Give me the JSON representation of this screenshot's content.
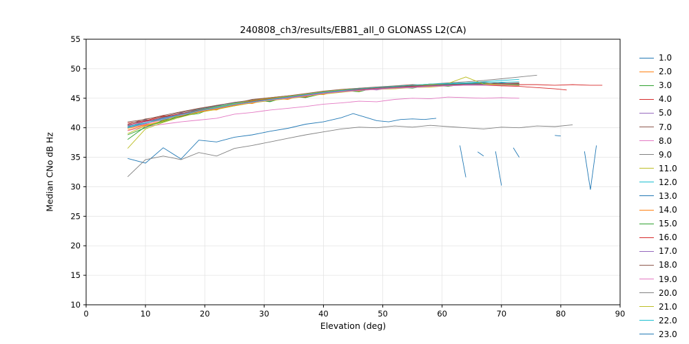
{
  "chart_data": {
    "type": "line",
    "title": "240808_ch3/results/EB81_all_0 GLONASS L2(CA)",
    "xlabel": "Elevation (deg)",
    "ylabel": "Median CNo dB Hz",
    "xlim": [
      0,
      90
    ],
    "ylim": [
      10,
      55
    ],
    "xticks": [
      0,
      10,
      20,
      30,
      40,
      50,
      60,
      70,
      80,
      90
    ],
    "yticks": [
      10,
      15,
      20,
      25,
      30,
      35,
      40,
      45,
      50,
      55
    ],
    "grid": true,
    "legend_position": "right-outside",
    "x_default": [
      7,
      10,
      13,
      16,
      19,
      22,
      25,
      28,
      31,
      34,
      37,
      40,
      43,
      46,
      49,
      52,
      55,
      58,
      61,
      64,
      67,
      70,
      73
    ],
    "series": [
      {
        "name": "1.0",
        "color": "#1f77b4",
        "y": [
          40.4,
          41.3,
          41.2,
          42.5,
          42.6,
          43.8,
          43.9,
          44.6,
          44.5,
          45.4,
          45.3,
          46.2,
          46.0,
          46.7,
          46.5,
          47.0,
          46.9,
          47.3,
          47.1,
          47.5,
          47.3,
          47.6,
          47.4
        ]
      },
      {
        "name": "2.0",
        "color": "#ff7f0e",
        "y": [
          39.9,
          40.5,
          41.6,
          41.9,
          43.1,
          43.0,
          44.2,
          44.1,
          45.0,
          44.8,
          45.7,
          45.6,
          46.4,
          46.2,
          46.9,
          46.6,
          47.2,
          46.9,
          47.4,
          47.2,
          47.6,
          47.2,
          47.5
        ]
      },
      {
        "name": "3.0",
        "color": "#2ca02c",
        "y": [
          38.0,
          40.2,
          41.0,
          42.0,
          42.4,
          43.6,
          43.7,
          44.7,
          44.4,
          45.3,
          45.1,
          45.8,
          46.3,
          46.1,
          46.8,
          46.9,
          46.7,
          47.2,
          47.0,
          47.4,
          47.5,
          47.1,
          47.3
        ]
      },
      {
        "name": "4.0",
        "color": "#d62728",
        "x": [
          7,
          10,
          13,
          16,
          19,
          22,
          25,
          28,
          31,
          34,
          37,
          40,
          43,
          46,
          49,
          52,
          55,
          58,
          61,
          64,
          67,
          70,
          73,
          76,
          79,
          82,
          85,
          87
        ],
        "y": [
          40.8,
          41.2,
          42.0,
          42.1,
          43.3,
          43.5,
          44.3,
          44.6,
          45.0,
          45.3,
          45.2,
          46.1,
          46.4,
          46.3,
          46.8,
          47.0,
          47.2,
          47.4,
          47.3,
          47.6,
          47.4,
          47.5,
          47.3,
          47.3,
          47.2,
          47.3,
          47.2,
          47.2
        ]
      },
      {
        "name": "5.0",
        "color": "#9467bd",
        "y": [
          40.0,
          40.7,
          41.8,
          42.0,
          43.0,
          43.2,
          43.8,
          44.5,
          44.6,
          45.0,
          45.6,
          45.8,
          46.1,
          46.6,
          46.4,
          46.9,
          47.1,
          47.0,
          47.2,
          47.5,
          47.2,
          47.4,
          47.2
        ]
      },
      {
        "name": "7.0",
        "color": "#8c564b",
        "y": [
          40.6,
          41.5,
          41.9,
          42.6,
          43.2,
          43.7,
          44.1,
          44.8,
          45.1,
          45.4,
          45.8,
          46.2,
          46.5,
          46.7,
          46.9,
          47.1,
          47.3,
          47.2,
          47.5,
          47.6,
          47.7,
          47.5,
          47.6
        ]
      },
      {
        "name": "8.0",
        "color": "#e377c2",
        "y": [
          39.5,
          40.2,
          40.6,
          41.0,
          41.3,
          41.6,
          42.3,
          42.6,
          43.0,
          43.3,
          43.6,
          44.0,
          44.2,
          44.5,
          44.4,
          44.8,
          45.0,
          44.9,
          45.2,
          45.1,
          45.0,
          45.1,
          45.0
        ]
      },
      {
        "name": "9.0",
        "color": "#7f7f7f",
        "x": [
          7,
          10,
          13,
          16,
          19,
          22,
          25,
          28,
          31,
          34,
          37,
          40,
          43,
          46,
          49,
          52,
          55,
          58,
          61,
          64,
          67,
          70,
          73,
          76
        ],
        "y": [
          40.2,
          40.8,
          41.6,
          42.3,
          43.0,
          43.5,
          44.1,
          44.5,
          44.9,
          45.2,
          45.6,
          46.1,
          46.3,
          46.6,
          46.8,
          47.0,
          47.2,
          47.4,
          47.6,
          47.8,
          48.0,
          48.3,
          48.6,
          48.9
        ]
      },
      {
        "name": "11.0",
        "color": "#bcbd22",
        "y": [
          36.5,
          39.8,
          40.9,
          41.8,
          42.6,
          43.1,
          43.7,
          44.2,
          44.6,
          44.9,
          45.3,
          45.7,
          46.0,
          46.3,
          46.5,
          46.6,
          46.8,
          46.9,
          47.1,
          47.2,
          47.2,
          47.2,
          47.1
        ]
      },
      {
        "name": "12.0",
        "color": "#17becf",
        "y": [
          40.1,
          41.0,
          41.7,
          42.4,
          43.1,
          43.6,
          44.2,
          44.6,
          45.0,
          45.3,
          45.7,
          46.1,
          46.4,
          46.6,
          46.8,
          47.0,
          47.1,
          47.3,
          47.4,
          47.5,
          47.6,
          47.7,
          47.8
        ]
      },
      {
        "name": "13.0",
        "color": "#1f77b4",
        "x": [
          7,
          10,
          13,
          16,
          19,
          22,
          25,
          28,
          31,
          34,
          37,
          40,
          43,
          45,
          47,
          49,
          51,
          53,
          55,
          57,
          59,
          61,
          63,
          64,
          65,
          66,
          67,
          68,
          69,
          70,
          71,
          72,
          73,
          74,
          75,
          79,
          80,
          83,
          84,
          85,
          86
        ],
        "y": [
          34.8,
          34.0,
          36.6,
          34.7,
          37.9,
          37.6,
          38.4,
          38.8,
          39.4,
          39.9,
          40.6,
          41.0,
          41.7,
          42.4,
          41.8,
          41.2,
          41.0,
          41.4,
          41.5,
          41.4,
          41.6,
          null,
          37.0,
          31.6,
          null,
          35.9,
          35.2,
          null,
          36.0,
          30.2,
          null,
          36.6,
          35.0,
          null,
          null,
          38.7,
          38.6,
          null,
          36.0,
          29.5,
          37.0
        ]
      },
      {
        "name": "14.0",
        "color": "#ff7f0e",
        "y": [
          39.6,
          40.4,
          41.2,
          42.0,
          42.7,
          43.2,
          43.8,
          44.3,
          44.7,
          45.0,
          45.4,
          45.8,
          46.1,
          46.4,
          46.6,
          46.7,
          46.9,
          47.0,
          47.2,
          47.3,
          47.3,
          47.3,
          47.2
        ]
      },
      {
        "name": "15.0",
        "color": "#2ca02c",
        "y": [
          38.8,
          40.0,
          41.3,
          41.9,
          42.8,
          43.3,
          43.9,
          44.4,
          44.8,
          45.1,
          45.5,
          45.9,
          46.2,
          46.5,
          46.7,
          46.8,
          47.0,
          47.1,
          47.3,
          47.4,
          47.4,
          47.4,
          47.3
        ]
      },
      {
        "name": "16.0",
        "color": "#d62728",
        "x": [
          7,
          10,
          13,
          16,
          19,
          22,
          25,
          28,
          31,
          34,
          37,
          40,
          43,
          46,
          49,
          52,
          55,
          58,
          61,
          64,
          67,
          70,
          73,
          76,
          79,
          81
        ],
        "y": [
          40.5,
          41.1,
          41.8,
          42.4,
          43.0,
          43.5,
          44.0,
          44.5,
          44.9,
          45.2,
          45.6,
          46.0,
          46.3,
          46.5,
          46.7,
          46.9,
          47.0,
          47.1,
          47.2,
          47.3,
          47.2,
          47.1,
          47.0,
          46.8,
          46.6,
          46.4
        ]
      },
      {
        "name": "17.0",
        "color": "#9467bd",
        "y": [
          40.3,
          41.0,
          41.6,
          42.3,
          42.9,
          43.4,
          44.0,
          44.4,
          44.8,
          45.1,
          45.5,
          45.9,
          46.2,
          46.4,
          46.6,
          46.8,
          46.9,
          47.1,
          47.2,
          47.3,
          47.3,
          47.4,
          47.4
        ]
      },
      {
        "name": "18.0",
        "color": "#8c564b",
        "y": [
          41.0,
          41.4,
          42.1,
          42.7,
          43.3,
          43.8,
          44.3,
          44.7,
          45.1,
          45.4,
          45.7,
          46.1,
          46.4,
          46.6,
          46.8,
          46.9,
          47.1,
          47.2,
          47.3,
          47.4,
          47.4,
          47.5,
          47.5
        ]
      },
      {
        "name": "19.0",
        "color": "#e377c2",
        "y": [
          40.0,
          40.6,
          41.4,
          42.1,
          42.8,
          43.3,
          43.9,
          44.3,
          44.7,
          45.0,
          45.4,
          45.8,
          46.1,
          46.3,
          46.5,
          46.7,
          46.8,
          47.0,
          47.1,
          47.2,
          47.2,
          47.2,
          47.1
        ]
      },
      {
        "name": "20.0",
        "color": "#7f7f7f",
        "x": [
          7,
          10,
          13,
          16,
          19,
          22,
          25,
          28,
          31,
          34,
          37,
          40,
          43,
          46,
          49,
          52,
          55,
          58,
          61,
          64,
          67,
          70,
          73,
          76,
          79,
          82
        ],
        "y": [
          31.7,
          34.6,
          35.2,
          34.6,
          35.8,
          35.2,
          36.5,
          37.0,
          37.6,
          38.2,
          38.8,
          39.3,
          39.8,
          40.1,
          40.0,
          40.3,
          40.1,
          40.4,
          40.2,
          40.0,
          39.8,
          40.1,
          40.0,
          40.3,
          40.2,
          40.5
        ]
      },
      {
        "name": "21.0",
        "color": "#bcbd22",
        "y": [
          39.0,
          40.3,
          41.1,
          42.2,
          42.9,
          43.5,
          44.1,
          44.6,
          45.0,
          45.3,
          45.7,
          46.1,
          46.4,
          46.6,
          46.8,
          47.0,
          47.2,
          47.3,
          47.5,
          48.6,
          47.4,
          47.3,
          47.2
        ]
      },
      {
        "name": "22.0",
        "color": "#17becf",
        "y": [
          40.0,
          40.8,
          41.5,
          42.2,
          42.9,
          43.4,
          44.0,
          44.4,
          44.8,
          45.2,
          45.6,
          46.0,
          46.3,
          46.6,
          46.8,
          47.0,
          47.2,
          47.4,
          47.5,
          47.6,
          47.8,
          48.0,
          48.2
        ]
      }
    ],
    "legend_extra": [
      {
        "name": "23.0",
        "color": "#1f77b4",
        "cropped": true
      }
    ]
  }
}
